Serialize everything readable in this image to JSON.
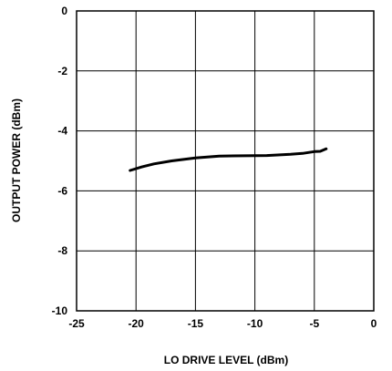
{
  "chart_data": {
    "type": "line",
    "xlabel": "LO DRIVE LEVEL (dBm)",
    "ylabel": "OUTPUT POWER (dBm)",
    "xlim": [
      -25,
      0
    ],
    "ylim": [
      -10,
      0
    ],
    "x_ticks": [
      -25,
      -20,
      -15,
      -10,
      -5,
      0
    ],
    "y_ticks": [
      0,
      -2,
      -4,
      -6,
      -8,
      -10
    ],
    "x_tick_labels": [
      "-25",
      "-20",
      "-15",
      "-10",
      "-5",
      "0"
    ],
    "y_tick_labels": [
      "0",
      "-2",
      "-4",
      "-6",
      "-8",
      "-10"
    ],
    "grid": true,
    "legend": "none",
    "line_color": "#000000",
    "series": [
      {
        "x": [
          -20.5,
          -19.5,
          -18.5,
          -17.0,
          -15.0,
          -13.0,
          -11.0,
          -9.0,
          -7.0,
          -6.0,
          -5.0,
          -4.5,
          -4.0
        ],
        "y": [
          -5.32,
          -5.2,
          -5.1,
          -5.0,
          -4.9,
          -4.84,
          -4.83,
          -4.82,
          -4.78,
          -4.75,
          -4.69,
          -4.68,
          -4.6
        ]
      }
    ]
  }
}
